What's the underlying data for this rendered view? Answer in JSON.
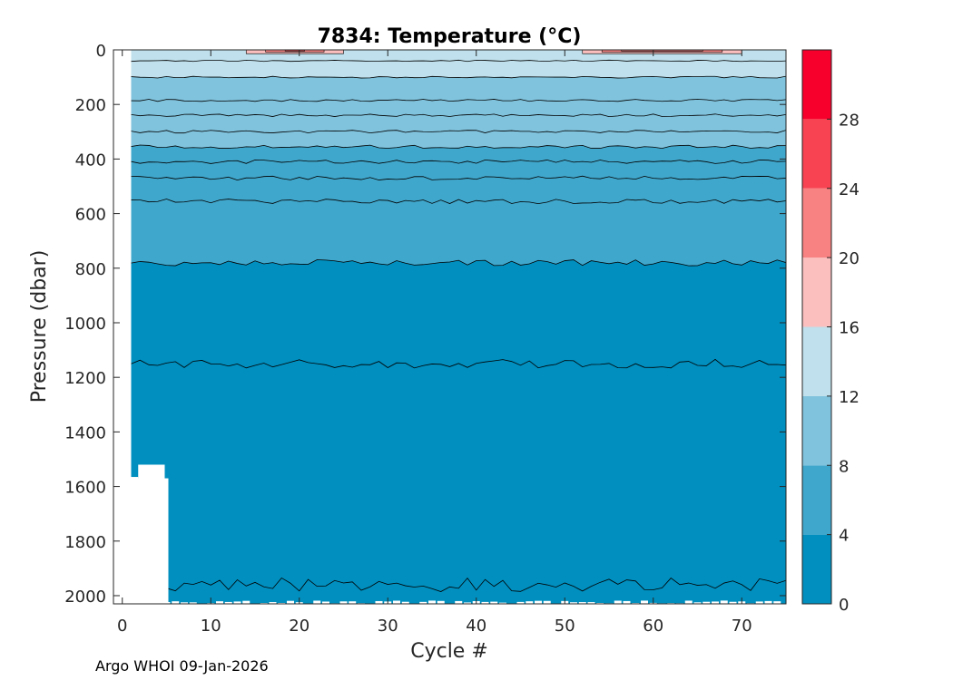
{
  "chart_data": {
    "type": "contour",
    "title": "7834:  Temperature (°C)",
    "xlabel": "Cycle #",
    "ylabel": "Pressure (dbar)",
    "xlim": [
      -1,
      75
    ],
    "ylim": [
      2030,
      0
    ],
    "x_ticks": [
      0,
      10,
      20,
      30,
      40,
      50,
      60,
      70
    ],
    "y_ticks": [
      0,
      200,
      400,
      600,
      800,
      1000,
      1200,
      1400,
      1600,
      1800,
      2000
    ],
    "colorbar": {
      "range": [
        0,
        32
      ],
      "ticks": [
        0,
        4,
        8,
        12,
        16,
        20,
        24,
        28
      ],
      "levels": [
        {
          "from": 0,
          "to": 4,
          "color": "#008fbf"
        },
        {
          "from": 4,
          "to": 8,
          "color": "#40a7cc"
        },
        {
          "from": 8,
          "to": 12,
          "color": "#80c3dd"
        },
        {
          "from": 12,
          "to": 16,
          "color": "#bfe0ec"
        },
        {
          "from": 16,
          "to": 20,
          "color": "#fbbfbe"
        },
        {
          "from": 20,
          "to": 24,
          "color": "#f88181"
        },
        {
          "from": 24,
          "to": 28,
          "color": "#f74352"
        },
        {
          "from": 28,
          "to": 32,
          "color": "#f7002b"
        }
      ]
    },
    "isotherm_depths": [
      {
        "level": 2,
        "pressure_dbar": 1960
      },
      {
        "level": 3,
        "pressure_dbar": 1150
      },
      {
        "level": 4,
        "pressure_dbar": 780
      },
      {
        "level": 5,
        "pressure_dbar": 555
      },
      {
        "level": 6,
        "pressure_dbar": 470
      },
      {
        "level": 7,
        "pressure_dbar": 410
      },
      {
        "level": 8,
        "pressure_dbar": 355
      },
      {
        "level": 9,
        "pressure_dbar": 300
      },
      {
        "level": 10,
        "pressure_dbar": 240
      },
      {
        "level": 11,
        "pressure_dbar": 185
      },
      {
        "level": 12,
        "pressure_dbar": 100
      },
      {
        "level": 14,
        "pressure_dbar": 40
      }
    ],
    "data_coverage": {
      "first_cycle": 1,
      "last_cycle": 75,
      "max_pressure_dbar": 2030,
      "shallow_cycles": [
        {
          "cycle": 1,
          "max_pressure_dbar": 1565
        },
        {
          "cycle": 4,
          "max_pressure_dbar": 1520
        }
      ]
    },
    "surface_warm_patches": [
      {
        "cycle_start": 14,
        "cycle_end": 25,
        "max_temp_C": 26
      },
      {
        "cycle_start": 52,
        "cycle_end": 70,
        "max_temp_C": 24
      }
    ]
  },
  "credit": "Argo WHOI 09-Jan-2026"
}
